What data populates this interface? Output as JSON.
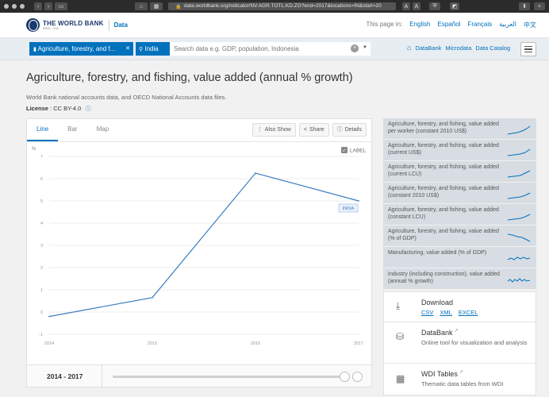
{
  "browser": {
    "url": "data.worldbank.org/indicator/NV.AGR.TOTL.KD.ZG?end=2017&locations=IN&start=20"
  },
  "header": {
    "logo_main": "THE WORLD BANK",
    "logo_sub": "IBRD · IDA",
    "logo_section": "Data",
    "lang_label": "This page in:",
    "languages": [
      "English",
      "Español",
      "Français",
      "العربية",
      "中文"
    ]
  },
  "filter": {
    "indicator_tag": "Agriculture, forestry, and f...",
    "country_tag": "India",
    "search_placeholder": "Search data e.g. GDP, population, Indonesia",
    "nav_links": [
      "DataBank",
      "Microdata",
      "Data Catalog"
    ]
  },
  "page": {
    "title": "Agriculture, forestry, and fishing, value added (annual % growth)",
    "subtitle": "World Bank national accounts data, and OECD National Accounts data files.",
    "license_label": "License",
    "license_value": ": CC BY-4.0"
  },
  "chart_panel": {
    "tabs": [
      "Line",
      "Bar",
      "Map"
    ],
    "active_tab": "Line",
    "tools": [
      "Also Show",
      "Share",
      "Details"
    ],
    "label_toggle": "LABEL",
    "range_label": "2014 - 2017"
  },
  "chart_data": {
    "type": "line",
    "x": [
      "2014",
      "2015",
      "2016",
      "2017"
    ],
    "series": [
      {
        "name": "INDIA",
        "values": [
          -0.2,
          0.65,
          6.25,
          5.0
        ]
      }
    ],
    "ylabel": "%",
    "ylim": [
      -1,
      7
    ],
    "yticks": [
      "7",
      "6",
      "5",
      "4",
      "3",
      "2",
      "1",
      "0",
      "-1"
    ],
    "grid": true,
    "series_color": "#3a7fc1"
  },
  "related": [
    "Agriculture, forestry, and fishing, value added per worker (constant 2010 US$)",
    "Agriculture, forestry, and fishing, value added (current US$)",
    "Agriculture, forestry, and fishing, value added (current LCU)",
    "Agriculture, forestry, and fishing, value added (constant 2010 US$)",
    "Agriculture, forestry, and fishing, value added (constant LCU)",
    "Agriculture, forestry, and fishing, value added (% of GDP)",
    "Manufacturing, value added (% of GDP)",
    "Industry (including construction), value added (annual % growth)"
  ],
  "download": {
    "title": "Download",
    "formats": [
      "CSV",
      "XML",
      "EXCEL"
    ],
    "databank_title": "DataBank",
    "databank_desc": "Online tool for visualization and analysis",
    "wdi_title": "WDI Tables",
    "wdi_desc": "Thematic data tables from WDI"
  }
}
